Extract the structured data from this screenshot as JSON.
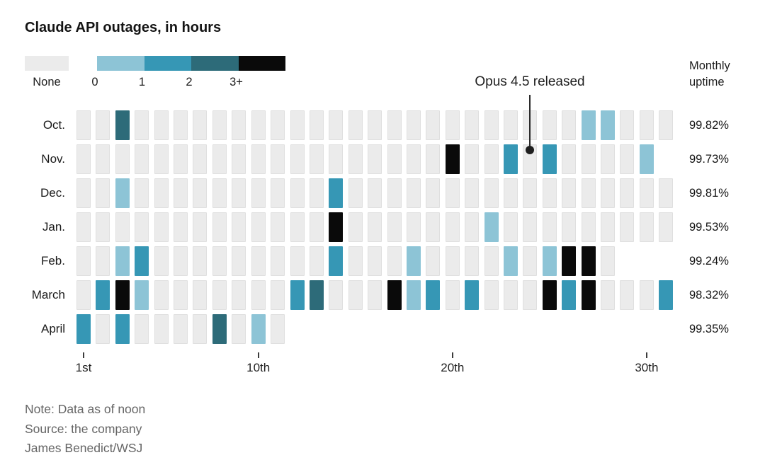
{
  "title": "Claude API outages, in hours",
  "legend": {
    "none_label": "None",
    "scale_labels": [
      "0",
      "1",
      "2",
      "3+"
    ],
    "colors": {
      "none": "#ebebeb",
      "level0": "#8dc4d6",
      "level1": "#3697b5",
      "level2": "#2d6b79",
      "level3": "#0a0a0a"
    }
  },
  "right_header": {
    "line1": "Monthly",
    "line2": "uptime"
  },
  "annotation": {
    "text": "Opus 4.5 released",
    "points_to": {
      "month": "Nov.",
      "day": 24
    }
  },
  "x_axis": {
    "ticks": [
      {
        "day": 1,
        "label": "1st"
      },
      {
        "day": 10,
        "label": "10th"
      },
      {
        "day": 20,
        "label": "20th"
      },
      {
        "day": 30,
        "label": "30th"
      }
    ]
  },
  "notes": [
    "Note: Data as of noon",
    "Source: the company",
    "James Benedict/WSJ"
  ],
  "chart_data": {
    "type": "heatmap",
    "title": "Claude API outages, in hours",
    "x": "day of month",
    "legend_buckets": [
      "None",
      "0",
      "1",
      "2",
      "3+"
    ],
    "rows": [
      {
        "month": "Oct.",
        "days": 31,
        "uptime": "99.82%",
        "outages": {
          "3": 2,
          "27": 0,
          "28": 0
        }
      },
      {
        "month": "Nov.",
        "days": 30,
        "uptime": "99.73%",
        "outages": {
          "20": 3,
          "23": 1,
          "25": 1,
          "30": 0
        }
      },
      {
        "month": "Dec.",
        "days": 31,
        "uptime": "99.81%",
        "outages": {
          "3": 0,
          "14": 1
        }
      },
      {
        "month": "Jan.",
        "days": 31,
        "uptime": "99.53%",
        "outages": {
          "14": 3,
          "22": 0
        }
      },
      {
        "month": "Feb.",
        "days": 28,
        "uptime": "99.24%",
        "outages": {
          "3": 0,
          "4": 1,
          "14": 1,
          "18": 0,
          "23": 0,
          "25": 0,
          "26": 3,
          "27": 3
        }
      },
      {
        "month": "March",
        "days": 31,
        "uptime": "98.32%",
        "outages": {
          "2": 1,
          "3": 3,
          "4": 0,
          "12": 1,
          "13": 2,
          "17": 3,
          "18": 0,
          "19": 1,
          "21": 1,
          "25": 3,
          "26": 1,
          "27": 3,
          "31": 1
        }
      },
      {
        "month": "April",
        "days": 11,
        "uptime": "99.35%",
        "outages": {
          "1": 1,
          "3": 1,
          "8": 2,
          "10": 0
        }
      }
    ]
  }
}
